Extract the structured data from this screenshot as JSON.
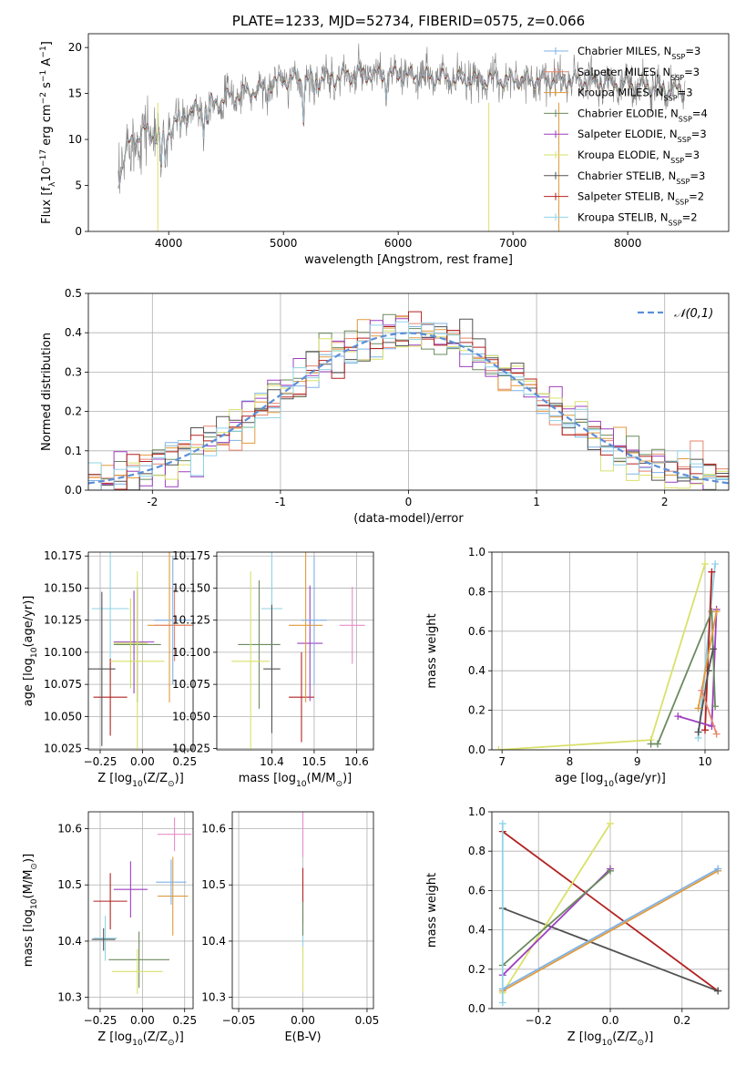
{
  "figure_title": "PLATE=1233, MJD=52734, FIBERID=0575, z=0.066",
  "palette": [
    "#7fb2e6",
    "#e6866f",
    "#e09a3c",
    "#6b8a5f",
    "#9e3fbf",
    "#d9e16a",
    "#525252",
    "#b22222",
    "#8fd3e6",
    "#7b9cd6",
    "#d97b2b",
    "#5d8a6a",
    "#b03cb0",
    "#c8e05a",
    "#888888",
    "#c0392b",
    "#e88cc8",
    "#7ad0d0"
  ],
  "chart_data": [
    {
      "id": "spectrum",
      "type": "line",
      "title": "PLATE=1233, MJD=52734, FIBERID=0575, z=0.066",
      "xlabel": "wavelength [Angstrom, rest frame]",
      "ylabel": "Flux [f_λ10^-17 erg cm^-2 s^-1 A^-1]",
      "xlim": [
        3300,
        8880
      ],
      "ylim": [
        0,
        21.5
      ],
      "xticks": [
        4000,
        5000,
        6000,
        7000,
        8000
      ],
      "yticks": [
        0,
        5,
        10,
        15,
        20
      ],
      "grid": false,
      "legend_position": "top-right",
      "continuum": {
        "x": [
          3560,
          3650,
          3800,
          3950,
          4100,
          4300,
          4500,
          4800,
          5000,
          5300,
          5600,
          6000,
          6500,
          7000,
          7400,
          8000,
          8500
        ],
        "y": [
          5.5,
          9.5,
          11.0,
          10.0,
          12.5,
          13.5,
          14.5,
          15.5,
          16.5,
          16.5,
          17.0,
          17.0,
          16.6,
          16.5,
          16.5,
          16.0,
          15.3
        ]
      },
      "absorption_lines": [
        {
          "x": 3934,
          "depth": 3.5
        },
        {
          "x": 3969,
          "depth": 3.0
        },
        {
          "x": 4102,
          "depth": 2.0
        },
        {
          "x": 4305,
          "depth": 2.5
        },
        {
          "x": 4340,
          "depth": 2.0
        },
        {
          "x": 4861,
          "depth": 1.5
        },
        {
          "x": 5175,
          "depth": 4.0
        },
        {
          "x": 5270,
          "depth": 1.5
        },
        {
          "x": 5894,
          "depth": 2.0
        },
        {
          "x": 6563,
          "depth": 1.0
        }
      ],
      "series": [
        {
          "name": "Chabrier MILES, N_SSP=3",
          "color": "#7fb2e6"
        },
        {
          "name": "Salpeter MILES, N_SSP=3",
          "color": "#e6866f"
        },
        {
          "name": "Kroupa MILES, N_SSP=3",
          "color": "#e09a3c"
        },
        {
          "name": "Chabrier ELODIE, N_SSP=4",
          "color": "#6b8a5f"
        },
        {
          "name": "Salpeter ELODIE, N_SSP=3",
          "color": "#9e3fbf"
        },
        {
          "name": "Kroupa ELODIE, N_SSP=3",
          "color": "#d9e16a"
        },
        {
          "name": "Chabrier STELIB, N_SSP=3",
          "color": "#525252"
        },
        {
          "name": "Salpeter STELIB, N_SSP=2",
          "color": "#b22222"
        },
        {
          "name": "Kroupa STELIB, N_SSP=2",
          "color": "#8fd3e6"
        }
      ]
    },
    {
      "id": "residuals",
      "type": "line",
      "xlabel": "(data-model)/error",
      "ylabel": "Normed distribution",
      "xlim": [
        -2.5,
        2.5
      ],
      "ylim": [
        0,
        0.5
      ],
      "xticks": [
        -2,
        -1,
        0,
        1,
        2
      ],
      "yticks": [
        0.0,
        0.1,
        0.2,
        0.3,
        0.4,
        0.5
      ],
      "grid": true,
      "legend_position": "top-right",
      "legend": "𝒩(0,1)",
      "gaussian": {
        "mean": 0,
        "sigma": 1,
        "color": "#5b8fd9"
      },
      "bin_width": 0.1,
      "n_histograms": 9
    },
    {
      "id": "age-vs-z",
      "type": "scatter",
      "xlabel": "Z [log10(Z/Z⊙)]",
      "ylabel": "age [log10(age/yr)]",
      "xlim": [
        -0.32,
        0.3
      ],
      "ylim": [
        10.024,
        10.178
      ],
      "xticks": [
        -0.25,
        0.0,
        0.25
      ],
      "xticklabels": [
        "−0.25",
        "0.00",
        "0.25"
      ],
      "yticks": [
        10.025,
        10.05,
        10.075,
        10.1,
        10.125,
        10.15,
        10.175
      ],
      "yticklabels": [
        "10.025",
        "10.050",
        "10.075",
        "10.100",
        "10.125",
        "10.150",
        "10.175"
      ],
      "grid": true,
      "points": [
        {
          "x": -0.19,
          "y": 10.134,
          "xerr": 0.11,
          "yerr": 0.05,
          "color": "#8fd3e6"
        },
        {
          "x": -0.19,
          "y": 10.065,
          "xerr": 0.1,
          "yerr": 0.03,
          "color": "#b22222"
        },
        {
          "x": -0.24,
          "y": 10.087,
          "xerr": 0.08,
          "yerr": 0.06,
          "color": "#525252"
        },
        {
          "x": -0.05,
          "y": 10.108,
          "xerr": 0.12,
          "yerr": 0.04,
          "color": "#9e3fbf"
        },
        {
          "x": -0.03,
          "y": 10.106,
          "xerr": 0.14,
          "yerr": 0.045,
          "color": "#6b8a5f"
        },
        {
          "x": -0.03,
          "y": 10.093,
          "xerr": 0.16,
          "yerr": 0.07,
          "color": "#d9e16a"
        },
        {
          "x": 0.16,
          "y": 10.121,
          "xerr": 0.13,
          "yerr": 0.06,
          "color": "#e09a3c"
        },
        {
          "x": 0.18,
          "y": 10.125,
          "xerr": 0.11,
          "yerr": 0.05,
          "color": "#7fb2e6"
        },
        {
          "x": 0.19,
          "y": 10.121,
          "xerr": 0.12,
          "yerr": 0.028,
          "color": "#e6866f"
        },
        {
          "x": -0.07,
          "y": 10.107,
          "xerr": 0.1,
          "yerr": 0.035,
          "color": "#c8e05a"
        }
      ]
    },
    {
      "id": "age-vs-mass",
      "type": "scatter",
      "xlabel": "mass [log10(M/M⊙)]",
      "ylabel": "",
      "xlim": [
        10.27,
        10.64
      ],
      "ylim": [
        10.024,
        10.178
      ],
      "xticks": [
        10.4,
        10.5,
        10.6
      ],
      "xticklabels": [
        "10.4",
        "10.5",
        "10.6"
      ],
      "yticks": [
        10.025,
        10.05,
        10.075,
        10.1,
        10.125,
        10.15,
        10.175
      ],
      "yticklabels": [
        "10.025",
        "10.050",
        "10.075",
        "10.100",
        "10.125",
        "10.150",
        "10.175"
      ],
      "grid": true,
      "points": [
        {
          "x": 10.4,
          "y": 10.134,
          "xerr": 0.025,
          "yerr": 0.05,
          "color": "#8fd3e6"
        },
        {
          "x": 10.47,
          "y": 10.065,
          "xerr": 0.03,
          "yerr": 0.035,
          "color": "#b22222"
        },
        {
          "x": 10.4,
          "y": 10.087,
          "xerr": 0.02,
          "yerr": 0.05,
          "color": "#525252"
        },
        {
          "x": 10.49,
          "y": 10.107,
          "xerr": 0.03,
          "yerr": 0.045,
          "color": "#9e3fbf"
        },
        {
          "x": 10.37,
          "y": 10.106,
          "xerr": 0.05,
          "yerr": 0.05,
          "color": "#6b8a5f"
        },
        {
          "x": 10.35,
          "y": 10.093,
          "xerr": 0.045,
          "yerr": 0.07,
          "color": "#d9e16a"
        },
        {
          "x": 10.48,
          "y": 10.121,
          "xerr": 0.04,
          "yerr": 0.06,
          "color": "#e09a3c"
        },
        {
          "x": 10.5,
          "y": 10.125,
          "xerr": 0.03,
          "yerr": 0.05,
          "color": "#7fb2e6"
        },
        {
          "x": 10.59,
          "y": 10.121,
          "xerr": 0.03,
          "yerr": 0.03,
          "color": "#e88cc8"
        }
      ]
    },
    {
      "id": "mass-weight-vs-age",
      "type": "line",
      "xlabel": "age  [log10(age/yr)]",
      "ylabel": "mass weight",
      "xlim": [
        6.85,
        10.35
      ],
      "ylim": [
        0,
        1.0
      ],
      "xticks": [
        7,
        8,
        9,
        10
      ],
      "yticks": [
        0.0,
        0.2,
        0.4,
        0.6,
        0.8,
        1.0
      ],
      "grid": true,
      "series": [
        {
          "color": "#d9e16a",
          "x": [
            6.95,
            9.2,
            10.0
          ],
          "y": [
            0.0,
            0.05,
            0.94
          ]
        },
        {
          "color": "#8fd3e6",
          "x": [
            9.9,
            10.15
          ],
          "y": [
            0.06,
            0.94
          ]
        },
        {
          "color": "#b22222",
          "x": [
            10.0,
            10.1
          ],
          "y": [
            0.1,
            0.9
          ]
        },
        {
          "color": "#9e3fbf",
          "x": [
            9.6,
            10.1,
            10.17
          ],
          "y": [
            0.17,
            0.12,
            0.71
          ]
        },
        {
          "color": "#6b8a5f",
          "x": [
            9.2,
            9.3,
            10.1,
            10.15
          ],
          "y": [
            0.03,
            0.03,
            0.7,
            0.22
          ]
        },
        {
          "color": "#525252",
          "x": [
            9.9,
            10.05,
            10.12
          ],
          "y": [
            0.09,
            0.4,
            0.51
          ]
        },
        {
          "color": "#e09a3c",
          "x": [
            9.9,
            10.17
          ],
          "y": [
            0.21,
            0.7
          ]
        },
        {
          "color": "#e6866f",
          "x": [
            9.95,
            10.17
          ],
          "y": [
            0.3,
            0.08
          ]
        }
      ]
    },
    {
      "id": "mass-vs-z",
      "type": "scatter",
      "xlabel": "Z [log10(Z/Z⊙)]",
      "ylabel": "mass [log10(M/M⊙)]",
      "xlim": [
        -0.32,
        0.3
      ],
      "ylim": [
        10.28,
        10.63
      ],
      "xticks": [
        -0.25,
        0.0,
        0.25
      ],
      "xticklabels": [
        "−0.25",
        "0.00",
        "0.25"
      ],
      "yticks": [
        10.3,
        10.4,
        10.5,
        10.6
      ],
      "yticklabels": [
        "10.3",
        "10.4",
        "10.5",
        "10.6"
      ],
      "grid": true,
      "points": [
        {
          "x": -0.19,
          "y": 10.471,
          "xerr": 0.1,
          "yerr": 0.05,
          "color": "#b22222"
        },
        {
          "x": -0.22,
          "y": 10.405,
          "xerr": 0.07,
          "yerr": 0.04,
          "color": "#8fd3e6"
        },
        {
          "x": -0.23,
          "y": 10.403,
          "xerr": 0.07,
          "yerr": 0.02,
          "color": "#525252"
        },
        {
          "x": -0.07,
          "y": 10.492,
          "xerr": 0.1,
          "yerr": 0.05,
          "color": "#9e3fbf"
        },
        {
          "x": -0.02,
          "y": 10.367,
          "xerr": 0.18,
          "yerr": 0.05,
          "color": "#6b8a5f"
        },
        {
          "x": -0.03,
          "y": 10.346,
          "xerr": 0.15,
          "yerr": 0.04,
          "color": "#d9e16a"
        },
        {
          "x": 0.18,
          "y": 10.48,
          "xerr": 0.09,
          "yerr": 0.07,
          "color": "#e09a3c"
        },
        {
          "x": 0.17,
          "y": 10.505,
          "xerr": 0.09,
          "yerr": 0.04,
          "color": "#7fb2e6"
        },
        {
          "x": 0.19,
          "y": 10.59,
          "xerr": 0.1,
          "yerr": 0.03,
          "color": "#e88cc8"
        }
      ]
    },
    {
      "id": "mass-vs-ebv",
      "type": "scatter",
      "xlabel": "E(B-V)",
      "ylabel": "",
      "xlim": [
        -0.055,
        0.055
      ],
      "ylim": [
        10.28,
        10.63
      ],
      "xticks": [
        -0.05,
        0.0,
        0.05
      ],
      "xticklabels": [
        "−0.05",
        "0.00",
        "0.05"
      ],
      "yticks": [
        10.3,
        10.4,
        10.5,
        10.6
      ],
      "yticklabels": [
        "10.3",
        "10.4",
        "10.5",
        "10.6"
      ],
      "grid": true,
      "points": [
        {
          "x": 0.0,
          "y": 10.59,
          "xerr": 0.0,
          "yerr": 0.04,
          "color": "#e88cc8"
        },
        {
          "x": 0.0,
          "y": 10.48,
          "xerr": 0.0,
          "yerr": 0.05,
          "color": "#b22222"
        },
        {
          "x": 0.0,
          "y": 10.4,
          "xerr": 0.0,
          "yerr": 0.04,
          "color": "#8fd3e6"
        },
        {
          "x": 0.0,
          "y": 10.35,
          "xerr": 0.0,
          "yerr": 0.04,
          "color": "#d9e16a"
        },
        {
          "x": 0.0,
          "y": 10.44,
          "xerr": 0.0,
          "yerr": 0.03,
          "color": "#6b8a5f"
        }
      ]
    },
    {
      "id": "mass-weight-vs-z",
      "type": "line",
      "xlabel": "Z [log10(Z/Z⊙)]",
      "ylabel": "mass weight",
      "xlim": [
        -0.33,
        0.33
      ],
      "ylim": [
        0,
        1.0
      ],
      "xticks": [
        -0.2,
        0.0,
        0.2
      ],
      "xticklabels": [
        "−0.2",
        "0.0",
        "0.2"
      ],
      "yticks": [
        0.0,
        0.2,
        0.4,
        0.6,
        0.8,
        1.0
      ],
      "grid": true,
      "series": [
        {
          "color": "#b22222",
          "x": [
            -0.3,
            0.3
          ],
          "y": [
            0.9,
            0.09
          ]
        },
        {
          "color": "#525252",
          "x": [
            -0.3,
            0.3
          ],
          "y": [
            0.51,
            0.09
          ]
        },
        {
          "color": "#d9e16a",
          "x": [
            -0.3,
            0.0
          ],
          "y": [
            0.08,
            0.94
          ]
        },
        {
          "color": "#9e3fbf",
          "x": [
            -0.3,
            0.0
          ],
          "y": [
            0.17,
            0.71
          ]
        },
        {
          "color": "#6b8a5f",
          "x": [
            -0.3,
            0.0
          ],
          "y": [
            0.22,
            0.7
          ]
        },
        {
          "color": "#e09a3c",
          "x": [
            -0.3,
            0.3
          ],
          "y": [
            0.09,
            0.7
          ]
        },
        {
          "color": "#7fb2e6",
          "x": [
            -0.3,
            0.3
          ],
          "y": [
            0.1,
            0.71
          ]
        },
        {
          "color": "#8fd3e6",
          "x": [
            -0.3,
            -0.3
          ],
          "y": [
            0.03,
            0.94
          ]
        }
      ]
    }
  ]
}
